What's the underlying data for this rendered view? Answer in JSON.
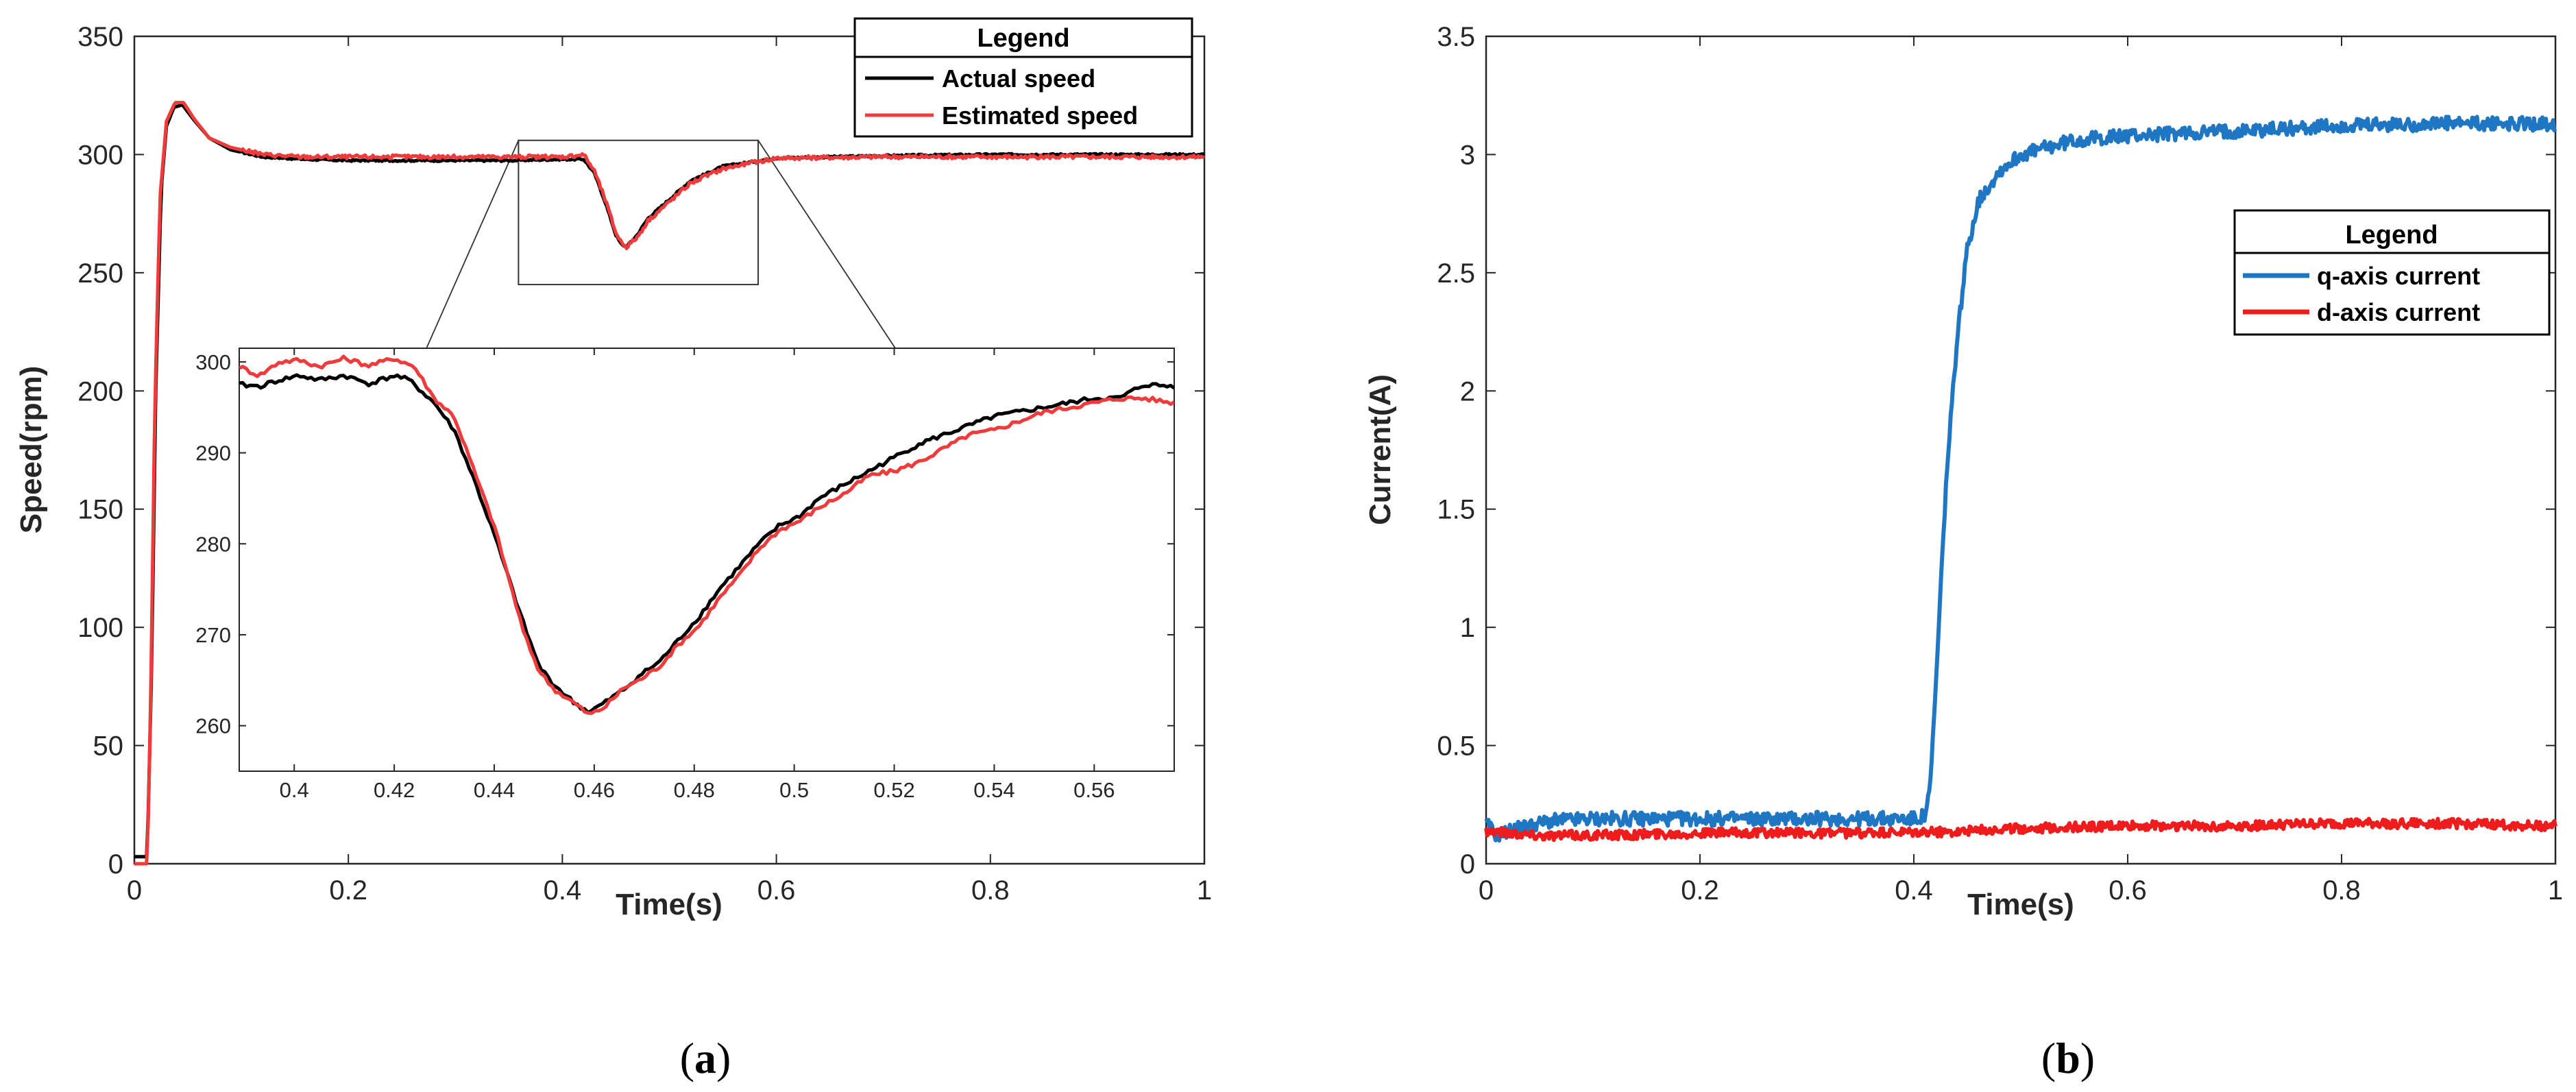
{
  "chart_data": [
    {
      "type": "line",
      "id": "a",
      "caption": {
        "open": "(",
        "letter": "a",
        "close": ")"
      },
      "xlabel": "Time(s)",
      "ylabel": "Speed(rpm)",
      "xlim": [
        0,
        1
      ],
      "ylim": [
        0,
        350
      ],
      "xticks": [
        0,
        0.2,
        0.4,
        0.6,
        0.8,
        1
      ],
      "xtick_labels": [
        "0",
        "0.2",
        "0.4",
        "0.6",
        "0.8",
        "1"
      ],
      "yticks": [
        0,
        50,
        100,
        150,
        200,
        250,
        300,
        350
      ],
      "ytick_labels": [
        "0",
        "50",
        "100",
        "150",
        "200",
        "250",
        "300",
        "350"
      ],
      "legend": {
        "title": "Legend",
        "location": "top-right"
      },
      "series": [
        {
          "name": "Actual speed",
          "color": "#000000",
          "points": [
            [
              0,
              3
            ],
            [
              0.012,
              3
            ],
            [
              0.016,
              80
            ],
            [
              0.02,
              200
            ],
            [
              0.025,
              285
            ],
            [
              0.03,
              312
            ],
            [
              0.037,
              320
            ],
            [
              0.045,
              321
            ],
            [
              0.055,
              315
            ],
            [
              0.07,
              307
            ],
            [
              0.09,
              302
            ],
            [
              0.12,
              299
            ],
            [
              0.16,
              298
            ],
            [
              0.2,
              297.5
            ],
            [
              0.25,
              297.5
            ],
            [
              0.3,
              297.5
            ],
            [
              0.35,
              297.5
            ],
            [
              0.4,
              298
            ],
            [
              0.42,
              298
            ],
            [
              0.43,
              292
            ],
            [
              0.44,
              280
            ],
            [
              0.45,
              266
            ],
            [
              0.455,
              262
            ],
            [
              0.46,
              261
            ],
            [
              0.47,
              266
            ],
            [
              0.48,
              273
            ],
            [
              0.5,
              281
            ],
            [
              0.52,
              289
            ],
            [
              0.55,
              295
            ],
            [
              0.6,
              298.5
            ],
            [
              0.7,
              299.5
            ],
            [
              0.8,
              300
            ],
            [
              0.9,
              300
            ],
            [
              1,
              300
            ]
          ]
        },
        {
          "name": "Estimated speed",
          "color": "#ee3b3b",
          "points": [
            [
              0,
              0
            ],
            [
              0.012,
              0
            ],
            [
              0.015,
              60
            ],
            [
              0.019,
              190
            ],
            [
              0.024,
              282
            ],
            [
              0.03,
              314
            ],
            [
              0.038,
              322
            ],
            [
              0.046,
              322
            ],
            [
              0.056,
              315
            ],
            [
              0.07,
              307
            ],
            [
              0.09,
              303
            ],
            [
              0.12,
              300
            ],
            [
              0.155,
              299
            ],
            [
              0.2,
              299
            ],
            [
              0.25,
              299
            ],
            [
              0.3,
              299
            ],
            [
              0.35,
              299
            ],
            [
              0.4,
              299
            ],
            [
              0.42,
              300
            ],
            [
              0.43,
              293
            ],
            [
              0.44,
              281
            ],
            [
              0.45,
              267
            ],
            [
              0.455,
              263
            ],
            [
              0.46,
              261
            ],
            [
              0.47,
              265
            ],
            [
              0.48,
              272
            ],
            [
              0.5,
              280
            ],
            [
              0.52,
              288
            ],
            [
              0.55,
              294
            ],
            [
              0.6,
              298.5
            ],
            [
              0.7,
              299
            ],
            [
              0.8,
              299
            ],
            [
              0.9,
              299
            ],
            [
              1,
              299
            ]
          ]
        }
      ],
      "zoom_rect": {
        "x": [
          0.359,
          0.583
        ],
        "y": [
          245,
          306
        ]
      },
      "inset": {
        "xlim": [
          0.389,
          0.576
        ],
        "ylim": [
          255,
          301.5
        ],
        "xticks": [
          0.4,
          0.42,
          0.44,
          0.46,
          0.48,
          0.5,
          0.52,
          0.54,
          0.56
        ],
        "xtick_labels": [
          "0.4",
          "0.42",
          "0.44",
          "0.46",
          "0.48",
          "0.5",
          "0.52",
          "0.54",
          "0.56"
        ],
        "yticks": [
          260,
          270,
          280,
          290,
          300
        ],
        "ytick_labels": [
          "260",
          "270",
          "280",
          "290",
          "300"
        ],
        "series": [
          {
            "name": "Actual speed",
            "color": "#000000",
            "points": [
              [
                0.389,
                297.5
              ],
              [
                0.393,
                297.3
              ],
              [
                0.397,
                298
              ],
              [
                0.401,
                298.5
              ],
              [
                0.405,
                298
              ],
              [
                0.41,
                298.5
              ],
              [
                0.415,
                297.6
              ],
              [
                0.42,
                298.5
              ],
              [
                0.423,
                298
              ],
              [
                0.428,
                295.5
              ],
              [
                0.432,
                292.5
              ],
              [
                0.436,
                287
              ],
              [
                0.44,
                281
              ],
              [
                0.443,
                276
              ],
              [
                0.446,
                271
              ],
              [
                0.449,
                266.5
              ],
              [
                0.452,
                264.5
              ],
              [
                0.456,
                262.5
              ],
              [
                0.459,
                261.5
              ],
              [
                0.462,
                262.5
              ],
              [
                0.466,
                264
              ],
              [
                0.469,
                265.5
              ],
              [
                0.473,
                267
              ],
              [
                0.477,
                269.5
              ],
              [
                0.481,
                272
              ],
              [
                0.485,
                275
              ],
              [
                0.489,
                277.5
              ],
              [
                0.493,
                280
              ],
              [
                0.497,
                282
              ],
              [
                0.501,
                283
              ],
              [
                0.505,
                285
              ],
              [
                0.51,
                286.5
              ],
              [
                0.515,
                288
              ],
              [
                0.52,
                289.5
              ],
              [
                0.525,
                291
              ],
              [
                0.53,
                292
              ],
              [
                0.535,
                293
              ],
              [
                0.54,
                294
              ],
              [
                0.545,
                294.5
              ],
              [
                0.55,
                295
              ],
              [
                0.555,
                295.5
              ],
              [
                0.56,
                296
              ],
              [
                0.565,
                296
              ],
              [
                0.57,
                297.5
              ],
              [
                0.576,
                297.3
              ]
            ]
          },
          {
            "name": "Estimated speed",
            "color": "#ee3b3b",
            "points": [
              [
                0.389,
                299.5
              ],
              [
                0.393,
                298.5
              ],
              [
                0.397,
                300
              ],
              [
                0.401,
                300.2
              ],
              [
                0.405,
                299.5
              ],
              [
                0.41,
                300.4
              ],
              [
                0.415,
                299.6
              ],
              [
                0.42,
                300.4
              ],
              [
                0.424,
                299.5
              ],
              [
                0.428,
                296
              ],
              [
                0.432,
                294
              ],
              [
                0.436,
                288
              ],
              [
                0.44,
                282
              ],
              [
                0.443,
                276
              ],
              [
                0.446,
                270
              ],
              [
                0.449,
                266
              ],
              [
                0.452,
                264
              ],
              [
                0.456,
                262.5
              ],
              [
                0.459,
                261.2
              ],
              [
                0.462,
                262
              ],
              [
                0.466,
                264.2
              ],
              [
                0.469,
                265
              ],
              [
                0.473,
                266.5
              ],
              [
                0.477,
                269
              ],
              [
                0.481,
                271
              ],
              [
                0.485,
                274
              ],
              [
                0.489,
                276.5
              ],
              [
                0.493,
                279.5
              ],
              [
                0.497,
                281.5
              ],
              [
                0.501,
                282.5
              ],
              [
                0.505,
                284
              ],
              [
                0.51,
                285.5
              ],
              [
                0.515,
                287.5
              ],
              [
                0.52,
                288
              ],
              [
                0.525,
                289
              ],
              [
                0.53,
                290.5
              ],
              [
                0.535,
                292
              ],
              [
                0.54,
                292.5
              ],
              [
                0.545,
                293.5
              ],
              [
                0.55,
                294.5
              ],
              [
                0.555,
                295
              ],
              [
                0.56,
                295.5
              ],
              [
                0.565,
                296
              ],
              [
                0.57,
                296
              ],
              [
                0.576,
                295.5
              ]
            ]
          }
        ]
      }
    },
    {
      "type": "line",
      "id": "b",
      "caption": {
        "open": "(",
        "letter": "b",
        "close": ")"
      },
      "xlabel": "Time(s)",
      "ylabel": "Current(A)",
      "xlim": [
        0,
        1
      ],
      "ylim": [
        0,
        3.5
      ],
      "xticks": [
        0,
        0.2,
        0.4,
        0.6,
        0.8,
        1
      ],
      "xtick_labels": [
        "0",
        "0.2",
        "0.4",
        "0.6",
        "0.8",
        "1"
      ],
      "yticks": [
        0,
        0.5,
        1,
        1.5,
        2,
        2.5,
        3,
        3.5
      ],
      "ytick_labels": [
        "0",
        "0.5",
        "1",
        "1.5",
        "2",
        "2.5",
        "3",
        "3.5"
      ],
      "legend": {
        "title": "Legend",
        "location": "right"
      },
      "series": [
        {
          "name": "q-axis current",
          "color": "#1f77c4",
          "points": [
            [
              0,
              0.17
            ],
            [
              0.01,
              0.12
            ],
            [
              0.03,
              0.15
            ],
            [
              0.06,
              0.18
            ],
            [
              0.1,
              0.19
            ],
            [
              0.2,
              0.19
            ],
            [
              0.3,
              0.19
            ],
            [
              0.4,
              0.19
            ],
            [
              0.41,
              0.2
            ],
            [
              0.415,
              0.3
            ],
            [
              0.42,
              0.7
            ],
            [
              0.43,
              1.6
            ],
            [
              0.44,
              2.2
            ],
            [
              0.45,
              2.6
            ],
            [
              0.46,
              2.8
            ],
            [
              0.48,
              2.93
            ],
            [
              0.5,
              3.0
            ],
            [
              0.55,
              3.06
            ],
            [
              0.6,
              3.08
            ],
            [
              0.7,
              3.1
            ],
            [
              0.8,
              3.12
            ],
            [
              0.9,
              3.13
            ],
            [
              1,
              3.13
            ]
          ]
        },
        {
          "name": "d-axis current",
          "color": "#ee1c1c",
          "points": [
            [
              0,
              0.14
            ],
            [
              0.05,
              0.12
            ],
            [
              0.1,
              0.12
            ],
            [
              0.2,
              0.13
            ],
            [
              0.3,
              0.13
            ],
            [
              0.4,
              0.13
            ],
            [
              0.45,
              0.14
            ],
            [
              0.5,
              0.15
            ],
            [
              0.6,
              0.16
            ],
            [
              0.7,
              0.16
            ],
            [
              0.8,
              0.17
            ],
            [
              0.9,
              0.17
            ],
            [
              1,
              0.16
            ]
          ]
        }
      ]
    }
  ]
}
